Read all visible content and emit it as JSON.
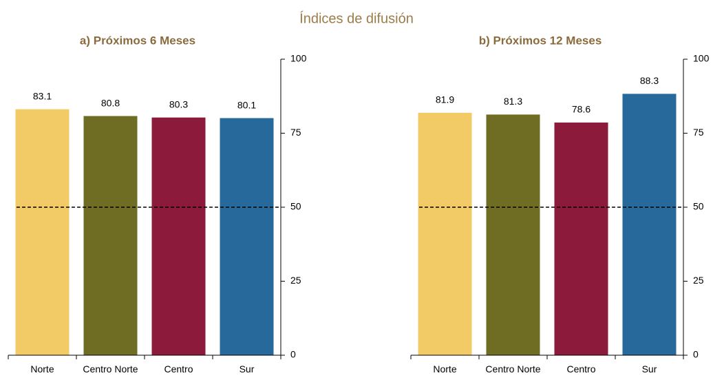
{
  "subtitle": "Índices de difusión",
  "chart_data": [
    {
      "type": "bar",
      "title": "a) Próximos 6 Meses",
      "categories": [
        "Norte",
        "Centro Norte",
        "Centro",
        "Sur"
      ],
      "values": [
        83.1,
        80.8,
        80.3,
        80.1
      ],
      "colors": [
        "#f2cb67",
        "#6e6d23",
        "#8c1b3b",
        "#27699a"
      ],
      "ylim": [
        0,
        100
      ],
      "yticks": [
        0,
        25,
        50,
        75,
        100
      ],
      "hline": 50
    },
    {
      "type": "bar",
      "title": "b) Próximos 12 Meses",
      "categories": [
        "Norte",
        "Centro Norte",
        "Centro",
        "Sur"
      ],
      "values": [
        81.9,
        81.3,
        78.6,
        88.3
      ],
      "colors": [
        "#f2cb67",
        "#6e6d23",
        "#8c1b3b",
        "#27699a"
      ],
      "ylim": [
        0,
        100
      ],
      "yticks": [
        0,
        25,
        50,
        75,
        100
      ],
      "hline": 50
    }
  ]
}
